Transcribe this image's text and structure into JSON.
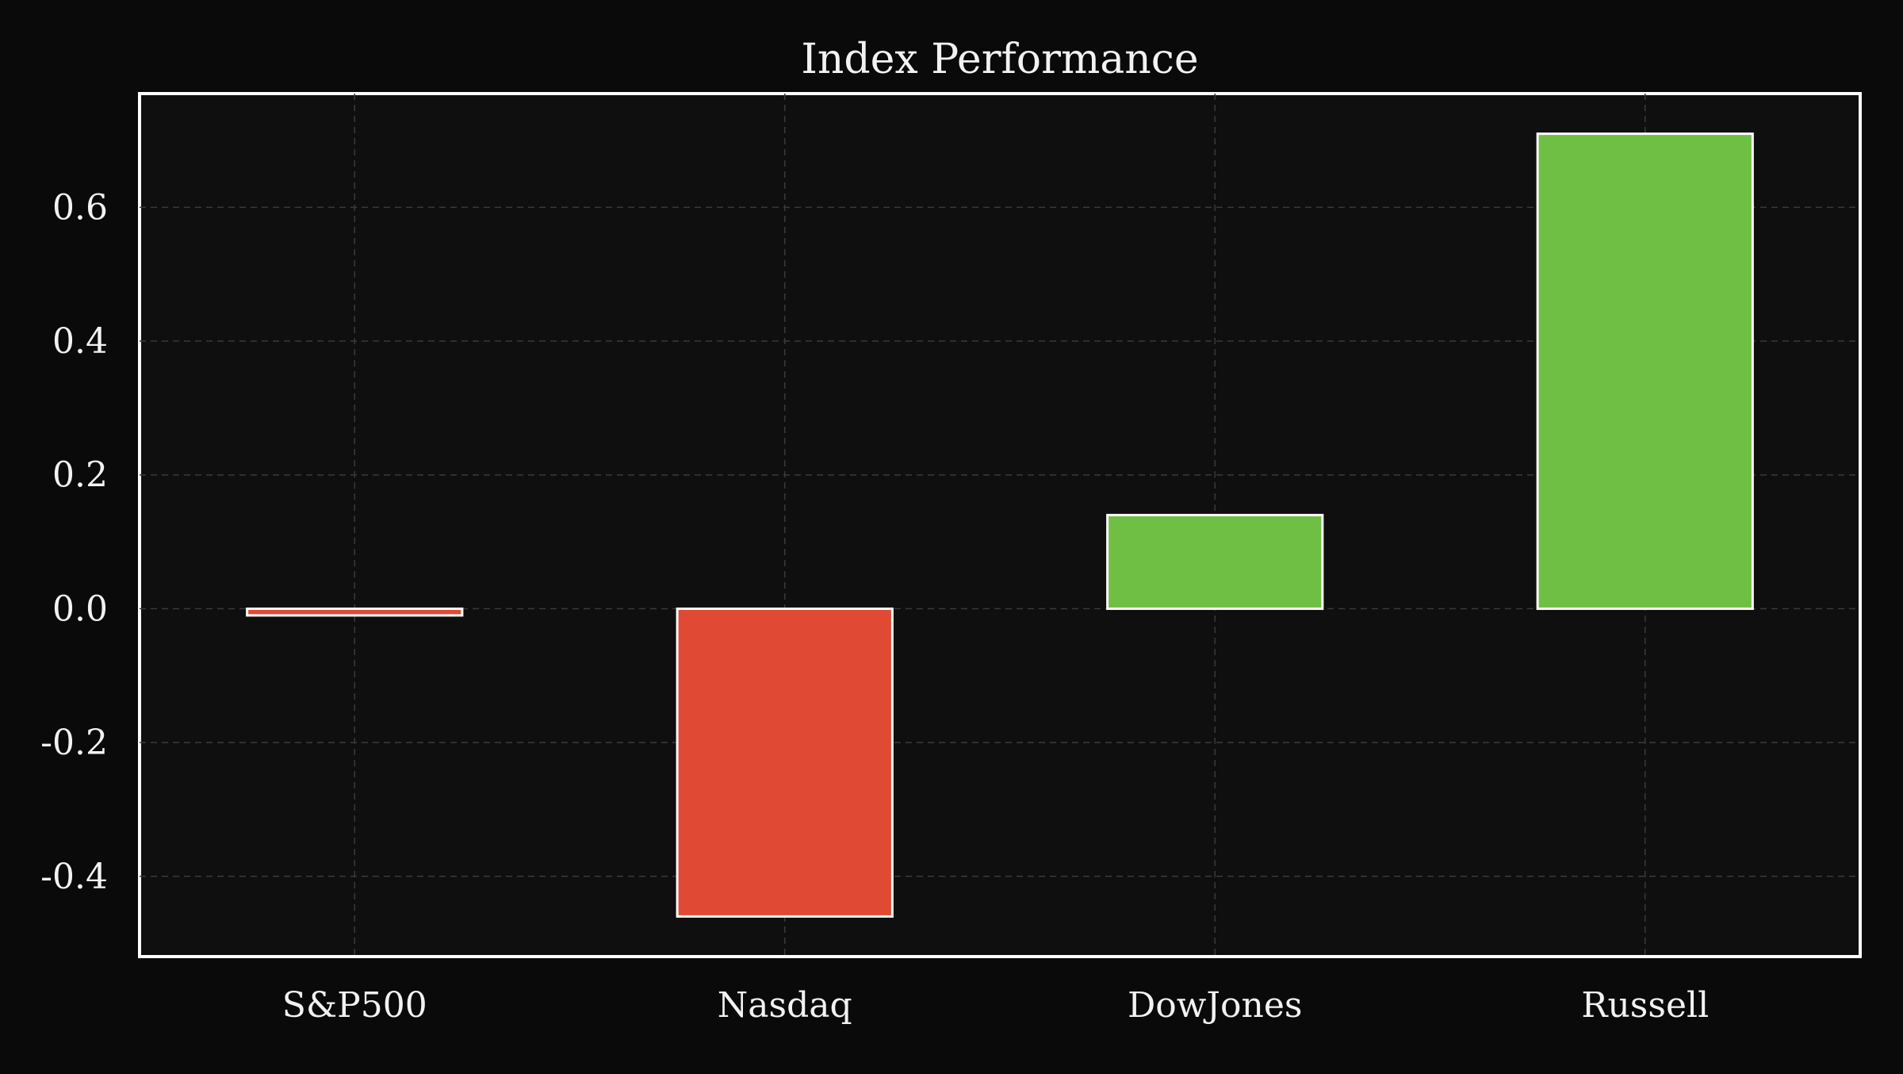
{
  "chart_data": {
    "type": "bar",
    "title": "Index Performance",
    "xlabel": "",
    "ylabel": "",
    "categories": [
      "S&P500",
      "Nasdaq",
      "DowJones",
      "Russell"
    ],
    "values": [
      -0.01,
      -0.46,
      0.14,
      0.71
    ],
    "ylim": [
      -0.52,
      0.77
    ],
    "yticks": [
      -0.4,
      -0.2,
      0.0,
      0.2,
      0.4,
      0.6
    ],
    "ytick_labels": [
      "-0.4",
      "-0.2",
      "0.0",
      "0.2",
      "0.4",
      "0.6"
    ],
    "grid": true,
    "legend": "none",
    "colors": {
      "positive": "#6fbf44",
      "negative": "#e04a34",
      "edge": "#ffffff",
      "background": "#0a0a0a",
      "plot_background": "#0f0f0f"
    }
  }
}
